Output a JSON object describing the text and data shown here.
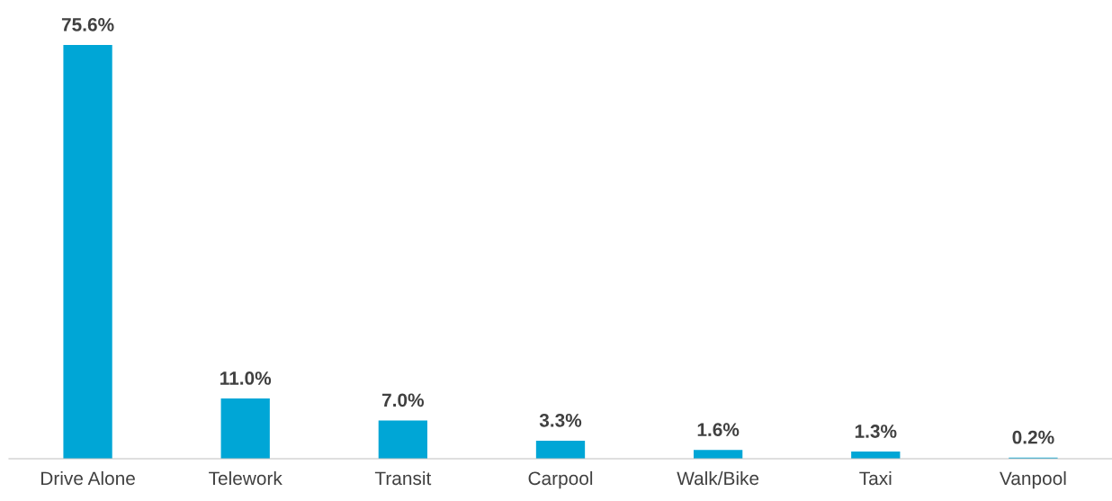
{
  "chart_data": {
    "type": "bar",
    "categories": [
      "Drive Alone",
      "Telework",
      "Transit",
      "Carpool",
      "Walk/Bike",
      "Taxi",
      "Vanpool"
    ],
    "values": [
      75.6,
      11.0,
      7.0,
      3.3,
      1.6,
      1.3,
      0.2
    ],
    "value_labels": [
      "75.6%",
      "11.0%",
      "7.0%",
      "3.3%",
      "1.6%",
      "1.3%",
      "0.2%"
    ],
    "color": "#00a6d6",
    "grid": false,
    "legend": false
  }
}
